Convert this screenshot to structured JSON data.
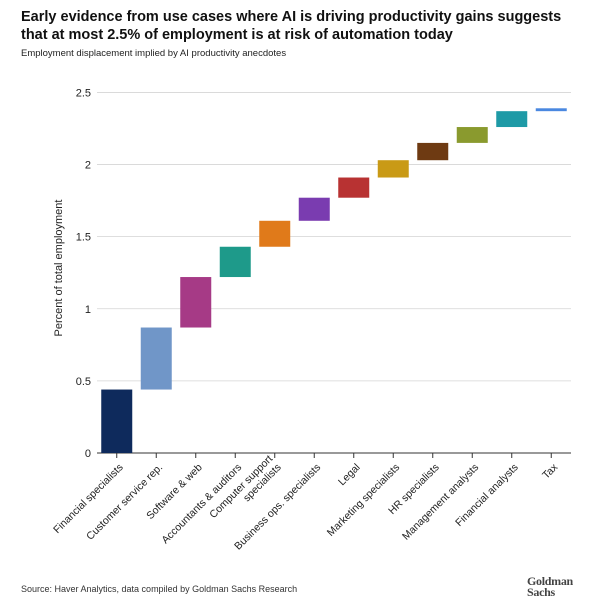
{
  "header": {
    "title": "Early evidence from use cases where AI is driving productivity gains suggests that at most 2.5% of employment is at risk of automation today",
    "subtitle": "Employment displacement implied by AI productivity anecdotes"
  },
  "footer": {
    "source": "Source: Haver Analytics, data compiled by Goldman Sachs Research",
    "logo_line1": "Goldman",
    "logo_line2": "Sachs"
  },
  "chart_data": {
    "type": "bar",
    "subtype": "waterfall",
    "title": "Early evidence from use cases where AI is driving productivity gains suggests that at most 2.5% of employment is at risk of automation today",
    "subtitle": "Employment displacement implied by AI productivity anecdotes",
    "xlabel": "",
    "ylabel": "Percent of total employment",
    "ylim": [
      0,
      2.6
    ],
    "yticks": [
      0,
      0.5,
      1,
      1.5,
      2,
      2.5
    ],
    "ytick_labels": [
      "0",
      "0.5",
      "1",
      "1.5",
      "2",
      "2.5"
    ],
    "grid": true,
    "categories": [
      "Financial specialists",
      "Customer service rep.",
      "Software & web",
      "Accountants & auditors",
      "Computer support specialists",
      "Business ops. specialists",
      "Legal",
      "Marketing specialists",
      "HR specialists",
      "Management analysts",
      "Financial analysts",
      "Tax"
    ],
    "values": [
      0.44,
      0.43,
      0.35,
      0.21,
      0.18,
      0.16,
      0.14,
      0.12,
      0.12,
      0.11,
      0.11,
      0.02
    ],
    "cumulative_end": [
      0.44,
      0.87,
      1.22,
      1.43,
      1.61,
      1.77,
      1.91,
      2.03,
      2.15,
      2.26,
      2.37,
      2.39
    ],
    "colors": [
      "#0e2a5c",
      "#7096c8",
      "#a63a86",
      "#1e9a8a",
      "#e07a1a",
      "#7a3cb0",
      "#b83232",
      "#c99a16",
      "#6e3a12",
      "#8a9a2e",
      "#1e9aa6",
      "#4a88e0"
    ]
  }
}
